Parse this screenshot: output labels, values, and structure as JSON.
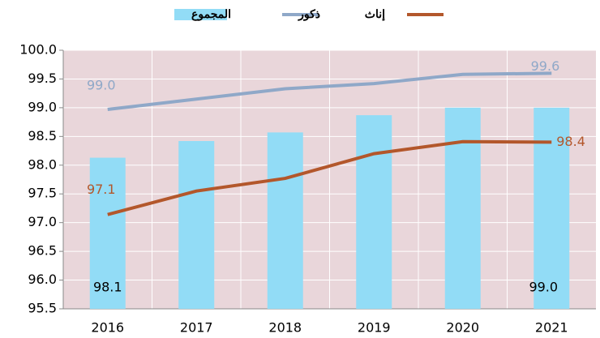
{
  "chart_data": {
    "type": "bar-line",
    "categories": [
      "2016",
      "2017",
      "2018",
      "2019",
      "2020",
      "2021"
    ],
    "series": [
      {
        "name": "المجموع",
        "type": "bar",
        "color": "#92dcf6",
        "values": [
          98.13,
          98.42,
          98.57,
          98.87,
          99.0,
          99.0
        ],
        "value_labels": [
          "98.1",
          null,
          null,
          null,
          null,
          "99.0"
        ]
      },
      {
        "name": "ذكور",
        "type": "line",
        "color": "#8fa8c8",
        "values": [
          98.97,
          99.15,
          99.33,
          99.42,
          99.58,
          99.6
        ],
        "value_labels": [
          "99.0",
          null,
          null,
          null,
          null,
          "99.6"
        ]
      },
      {
        "name": "إناث",
        "type": "line",
        "color": "#b3572b",
        "values": [
          97.14,
          97.55,
          97.77,
          98.2,
          98.41,
          98.4
        ],
        "value_labels": [
          "97.1",
          null,
          null,
          null,
          null,
          "98.4"
        ]
      }
    ],
    "ylim": [
      95.5,
      100
    ],
    "yticks": [
      95.5,
      {
        "value": 96,
        "label": "96.0"
      },
      96.5,
      {
        "value": 97,
        "label": "97.0"
      },
      97.5,
      {
        "value": 98,
        "label": "98.0"
      },
      98.5,
      {
        "value": 99,
        "label": "99.0"
      },
      99.5,
      {
        "value": 100,
        "label": "100.0"
      }
    ],
    "grid": true,
    "legend": "top"
  }
}
